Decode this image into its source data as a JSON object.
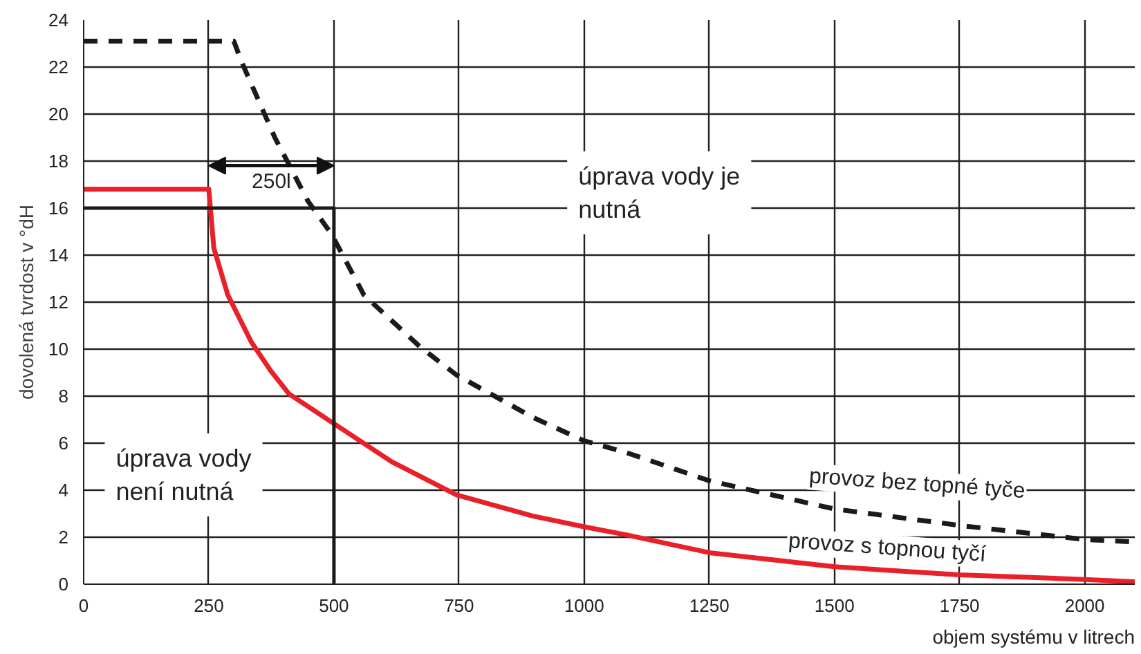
{
  "chart_data": {
    "type": "line",
    "xlabel": "objem systému v litrech",
    "ylabel": "dovolená tvrdost v °dH",
    "xlim": [
      0,
      2100
    ],
    "ylim": [
      0,
      24
    ],
    "xticks": [
      0,
      250,
      500,
      750,
      1000,
      1250,
      1500,
      1750,
      2000
    ],
    "yticks": [
      0,
      2,
      4,
      6,
      8,
      10,
      12,
      14,
      16,
      18,
      20,
      22,
      24
    ],
    "grid": true,
    "series": [
      {
        "name": "provoz bez topné tyče",
        "color": "#1a1a1a",
        "line_style": "dashed",
        "x": [
          0,
          300,
          316,
          382,
          448,
          495,
          560,
          672,
          745,
          897,
          1000,
          1084,
          1250,
          1500,
          1750,
          2000,
          2100
        ],
        "values": [
          23.1,
          23.1,
          22.2,
          19.0,
          16.3,
          14.9,
          12.3,
          10.1,
          8.9,
          7.1,
          6.1,
          5.6,
          4.4,
          3.2,
          2.5,
          1.9,
          1.8
        ]
      },
      {
        "name": "provoz s topnou tyčí",
        "color": "#e8202a",
        "line_style": "solid",
        "x": [
          0,
          250,
          260,
          288,
          335,
          373,
          410,
          495,
          616,
          745,
          897,
          1000,
          1084,
          1250,
          1500,
          1750,
          2000,
          2100
        ],
        "values": [
          16.8,
          16.8,
          14.3,
          12.3,
          10.3,
          9.1,
          8.1,
          6.9,
          5.2,
          3.8,
          2.9,
          2.44,
          2.1,
          1.34,
          0.74,
          0.4,
          0.2,
          0.1
        ]
      },
      {
        "color": "#1a1a1a",
        "line_style": "solid",
        "x": [
          0,
          500,
          500
        ],
        "values": [
          16,
          16,
          0
        ]
      }
    ],
    "annotations": [
      "250l",
      "úprava vody je nutná",
      "úprava vody není nutná"
    ]
  }
}
